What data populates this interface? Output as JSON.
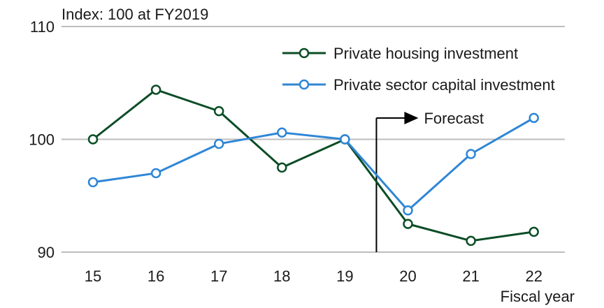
{
  "chart_data": {
    "type": "line",
    "title": "",
    "unit_label": "Index: 100 at FY2019",
    "xlabel": "Fiscal year",
    "ylabel": "",
    "categories": [
      "15",
      "16",
      "17",
      "18",
      "19",
      "20",
      "21",
      "22"
    ],
    "ylim": [
      90,
      110
    ],
    "yticks": [
      90,
      100,
      110
    ],
    "grid": true,
    "legend_position": "top-right",
    "series": [
      {
        "name": "Private housing investment",
        "color": "#0b4d26",
        "values": [
          100.0,
          104.4,
          102.5,
          97.5,
          100.0,
          92.5,
          91.0,
          91.8
        ]
      },
      {
        "name": "Private sector capital investment",
        "color": "#2f86d6",
        "values": [
          96.2,
          97.0,
          99.6,
          100.6,
          100.0,
          93.7,
          98.7,
          101.9
        ]
      }
    ],
    "annotation": {
      "label": "Forecast",
      "between_categories": [
        "19",
        "20"
      ]
    }
  }
}
